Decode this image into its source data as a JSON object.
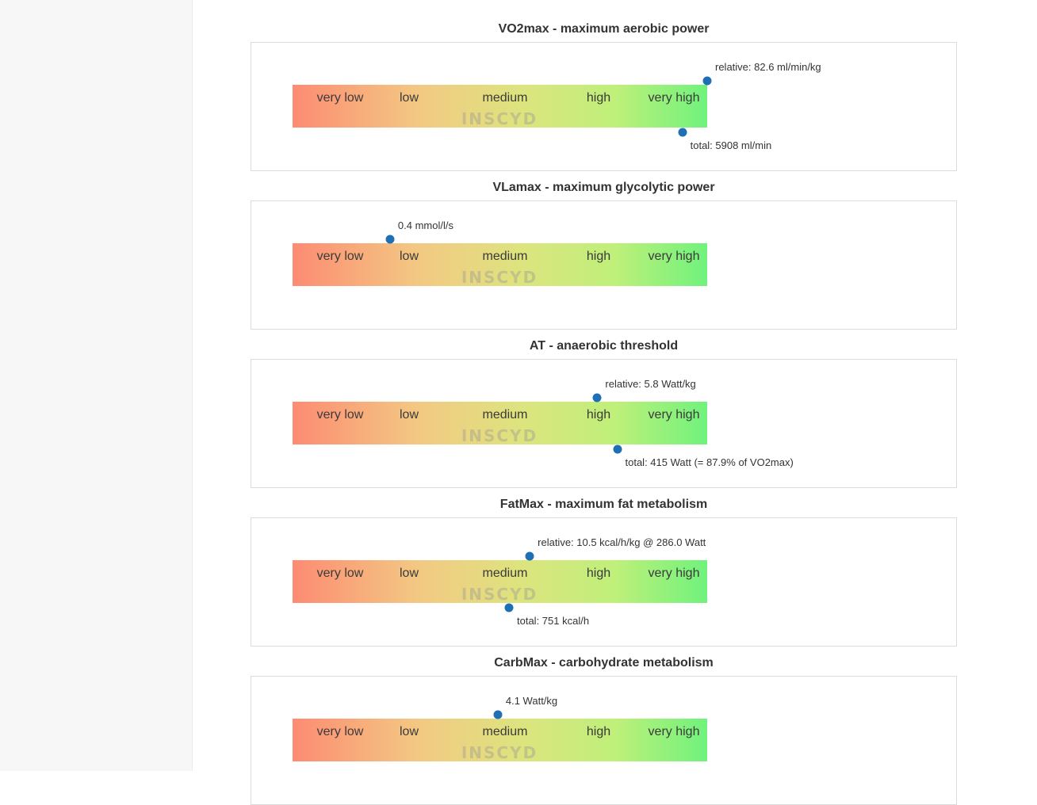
{
  "accent_color": "#1f6fb4",
  "scale_labels": [
    "very low",
    "low",
    "medium",
    "high",
    "very high"
  ],
  "watermark": "INSCYD",
  "sections": [
    {
      "title": "VO2max - maximum aerobic power",
      "markers": [
        {
          "label": "relative: 82.6 ml/min/kg",
          "level": 1.0,
          "position": "above"
        },
        {
          "label": "total: 5908 ml/min",
          "level": 0.94,
          "position": "below"
        }
      ]
    },
    {
      "title": "VLamax - maximum glycolytic power",
      "markers": [
        {
          "label": "0.4 mmol/l/s",
          "level": 0.235,
          "position": "above"
        }
      ]
    },
    {
      "title": "AT - anaerobic threshold",
      "markers": [
        {
          "label": "relative: 5.8 Watt/kg",
          "level": 0.735,
          "position": "above"
        },
        {
          "label": "total: 415 Watt (= 87.9% of VO2max)",
          "level": 0.783,
          "position": "below"
        }
      ]
    },
    {
      "title": "FatMax - maximum fat metabolism",
      "markers": [
        {
          "label": "relative: 10.5 kcal/h/kg @ 286.0 Watt",
          "level": 0.572,
          "position": "above"
        },
        {
          "label": "total: 751 kcal/h",
          "level": 0.522,
          "position": "below"
        }
      ]
    },
    {
      "title": "CarbMax - carbohydrate metabolism",
      "markers": [
        {
          "label": "4.1 Watt/kg",
          "level": 0.495,
          "position": "above"
        }
      ]
    }
  ]
}
